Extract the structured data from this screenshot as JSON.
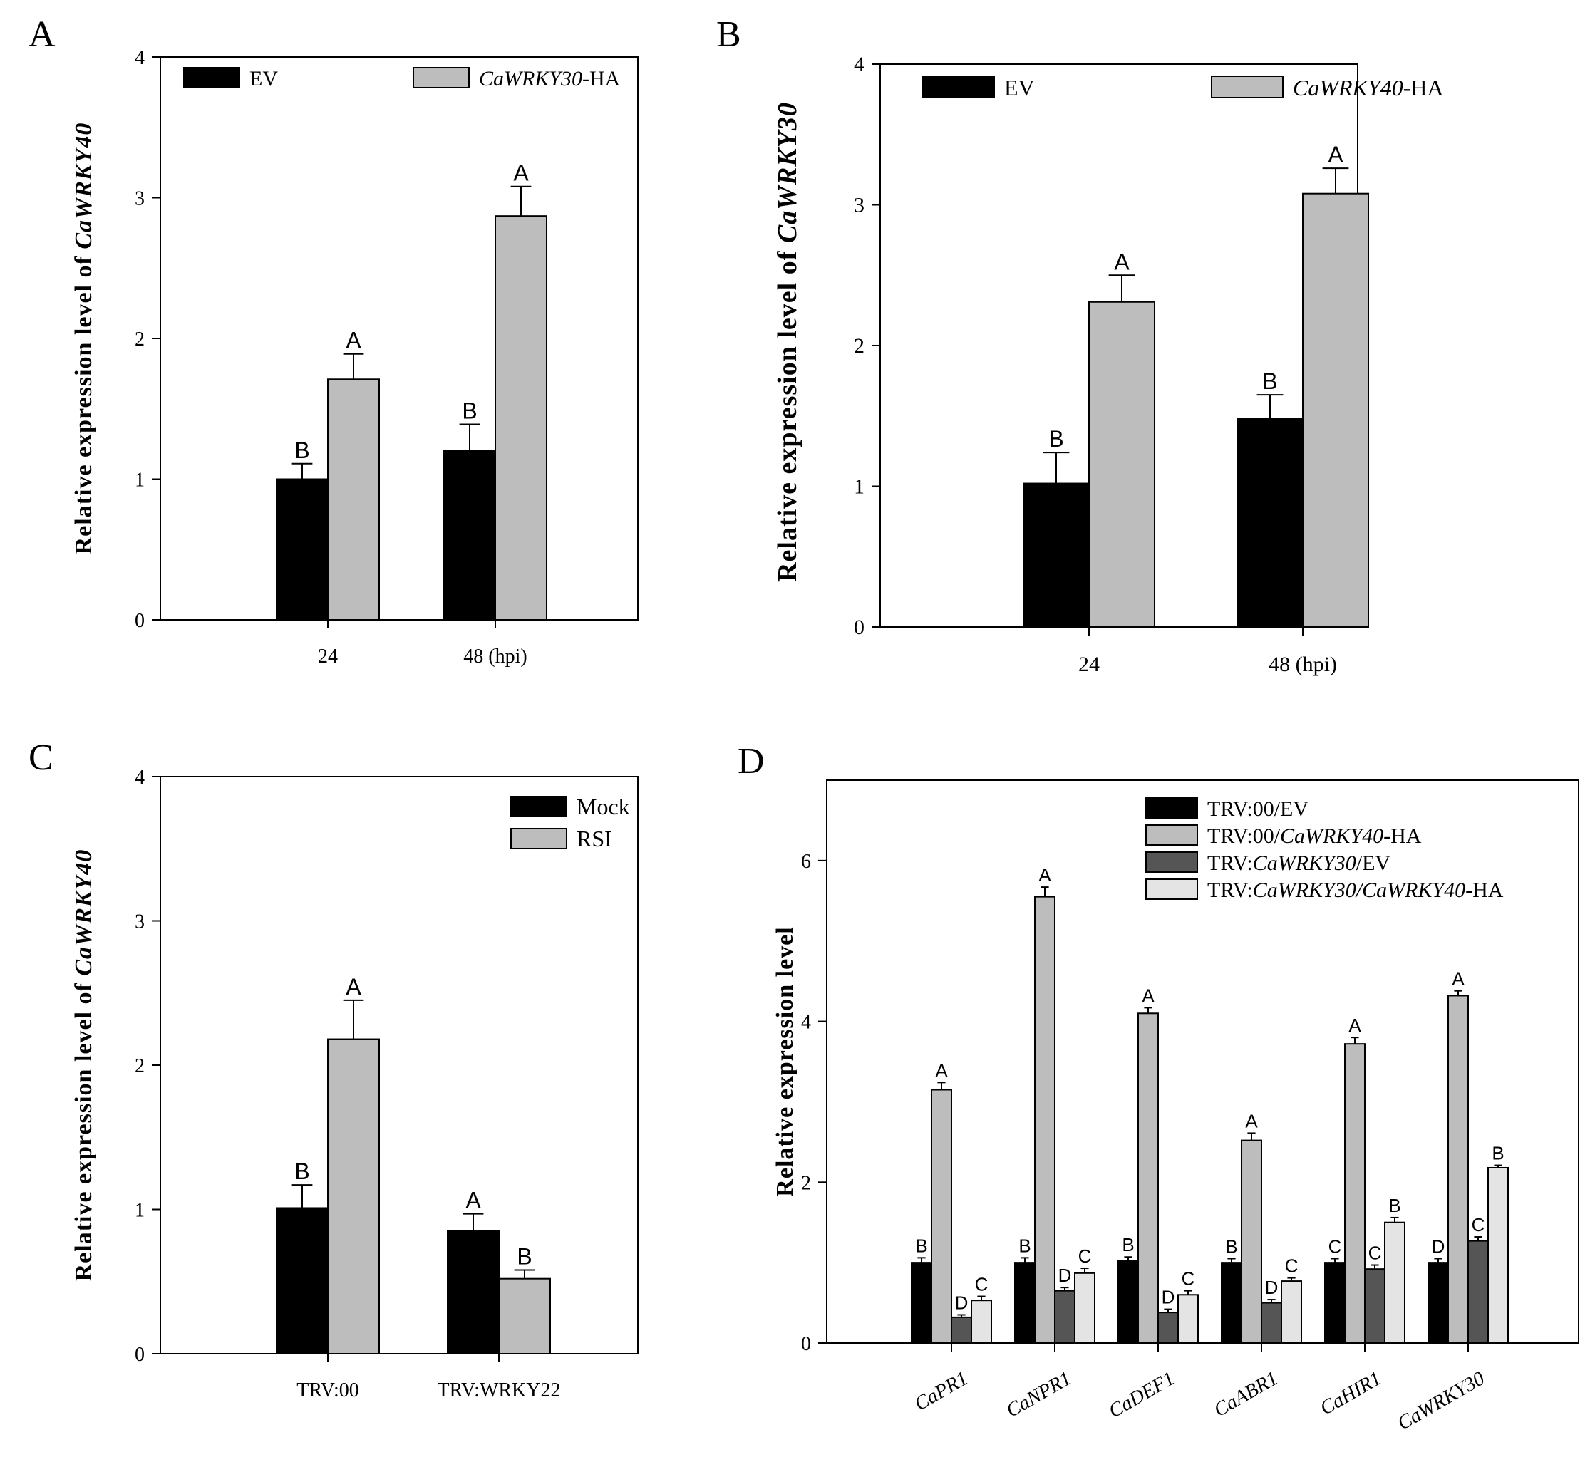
{
  "colors": {
    "ev": "#000000",
    "over": "#bdbdbd",
    "silenced_ev": "#555555",
    "silenced_over": "#e4e4e4",
    "axis": "#000000"
  },
  "chart_data": [
    {
      "panel": "A",
      "type": "bar",
      "ylabel_parts": [
        {
          "t": "Relative expression level of ",
          "i": false
        },
        {
          "t": "CaWRKY40",
          "i": true
        }
      ],
      "ylim": [
        0,
        4
      ],
      "yticks": [
        "0",
        "1",
        "2",
        "3",
        "4"
      ],
      "categories": [
        "24",
        "48 (hpi)"
      ],
      "legend": [
        {
          "parts": [
            {
              "t": "EV",
              "i": false
            }
          ]
        },
        {
          "parts": [
            {
              "t": "CaWRKY30",
              "i": true
            },
            {
              "t": "-HA",
              "i": false
            }
          ]
        }
      ],
      "series": [
        {
          "values": [
            1.0,
            1.2
          ],
          "errors": [
            0.11,
            0.19
          ],
          "letters": [
            "B",
            "B"
          ]
        },
        {
          "values": [
            1.71,
            2.87
          ],
          "errors": [
            0.18,
            0.21
          ],
          "letters": [
            "A",
            "A"
          ]
        }
      ]
    },
    {
      "panel": "B",
      "type": "bar",
      "ylabel_parts": [
        {
          "t": "Relative expression level of ",
          "i": false
        },
        {
          "t": "CaWRKY30",
          "i": true
        }
      ],
      "ylim": [
        0,
        4
      ],
      "yticks": [
        "0",
        "1",
        "2",
        "3",
        "4"
      ],
      "categories": [
        "24",
        "48 (hpi)"
      ],
      "legend": [
        {
          "parts": [
            {
              "t": "EV",
              "i": false
            }
          ]
        },
        {
          "parts": [
            {
              "t": "CaWRKY40",
              "i": true
            },
            {
              "t": "-HA",
              "i": false
            }
          ]
        }
      ],
      "series": [
        {
          "values": [
            1.02,
            1.48
          ],
          "errors": [
            0.22,
            0.17
          ],
          "letters": [
            "B",
            "B"
          ]
        },
        {
          "values": [
            2.31,
            3.08
          ],
          "errors": [
            0.19,
            0.18
          ],
          "letters": [
            "A",
            "A"
          ]
        }
      ]
    },
    {
      "panel": "C",
      "type": "bar",
      "ylabel_parts": [
        {
          "t": "Relative expression level of ",
          "i": false
        },
        {
          "t": "CaWRKY40",
          "i": true
        }
      ],
      "ylim": [
        0,
        4
      ],
      "yticks": [
        "0",
        "1",
        "2",
        "3",
        "4"
      ],
      "categories": [
        "TRV:00",
        "TRV:WRKY22"
      ],
      "legend": [
        {
          "parts": [
            {
              "t": "Mock",
              "i": false
            }
          ]
        },
        {
          "parts": [
            {
              "t": "RSI",
              "i": false
            }
          ]
        }
      ],
      "series": [
        {
          "values": [
            1.01,
            0.85
          ],
          "errors": [
            0.16,
            0.12
          ],
          "letters": [
            "B",
            "A"
          ]
        },
        {
          "values": [
            2.18,
            0.52
          ],
          "errors": [
            0.27,
            0.06
          ],
          "letters": [
            "A",
            "B"
          ]
        }
      ]
    },
    {
      "panel": "D",
      "type": "bar",
      "ylabel_parts": [
        {
          "t": "Relative expression level",
          "i": false
        }
      ],
      "ylim": [
        0,
        7
      ],
      "yticks": [
        "0",
        "2",
        "4",
        "6"
      ],
      "categories": [
        "CaPR1",
        "CaNPR1",
        "CaDEF1",
        "CaABR1",
        "CaHIR1",
        "CaWRKY30"
      ],
      "legend": [
        {
          "parts": [
            {
              "t": "TRV:00/EV",
              "i": false
            }
          ]
        },
        {
          "parts": [
            {
              "t": "TRV:00/",
              "i": false
            },
            {
              "t": "CaWRKY40",
              "i": true
            },
            {
              "t": "-HA",
              "i": false
            }
          ]
        },
        {
          "parts": [
            {
              "t": "TRV:",
              "i": false
            },
            {
              "t": "CaWRKY30",
              "i": true
            },
            {
              "t": "/EV",
              "i": false
            }
          ]
        },
        {
          "parts": [
            {
              "t": "TRV:",
              "i": false
            },
            {
              "t": "CaWRKY30/CaWRKY40",
              "i": true
            },
            {
              "t": "-HA",
              "i": false
            }
          ]
        }
      ],
      "series": [
        {
          "values": [
            1.0,
            1.0,
            1.02,
            1.0,
            1.0,
            1.0
          ],
          "errors": [
            0.06,
            0.06,
            0.05,
            0.05,
            0.05,
            0.05
          ],
          "letters": [
            "B",
            "B",
            "B",
            "B",
            "C",
            "D"
          ]
        },
        {
          "values": [
            3.15,
            5.55,
            4.1,
            2.52,
            3.72,
            4.32
          ],
          "errors": [
            0.09,
            0.12,
            0.07,
            0.09,
            0.08,
            0.06
          ],
          "letters": [
            "A",
            "A",
            "A",
            "A",
            "A",
            "A"
          ]
        },
        {
          "values": [
            0.32,
            0.65,
            0.38,
            0.5,
            0.92,
            1.27
          ],
          "errors": [
            0.03,
            0.04,
            0.04,
            0.04,
            0.05,
            0.05
          ],
          "letters": [
            "D",
            "D",
            "D",
            "D",
            "C",
            "C"
          ]
        },
        {
          "values": [
            0.53,
            0.87,
            0.6,
            0.77,
            1.5,
            2.18
          ],
          "errors": [
            0.05,
            0.06,
            0.05,
            0.04,
            0.06,
            0.03
          ],
          "letters": [
            "C",
            "C",
            "C",
            "C",
            "B",
            "B"
          ]
        }
      ]
    }
  ]
}
